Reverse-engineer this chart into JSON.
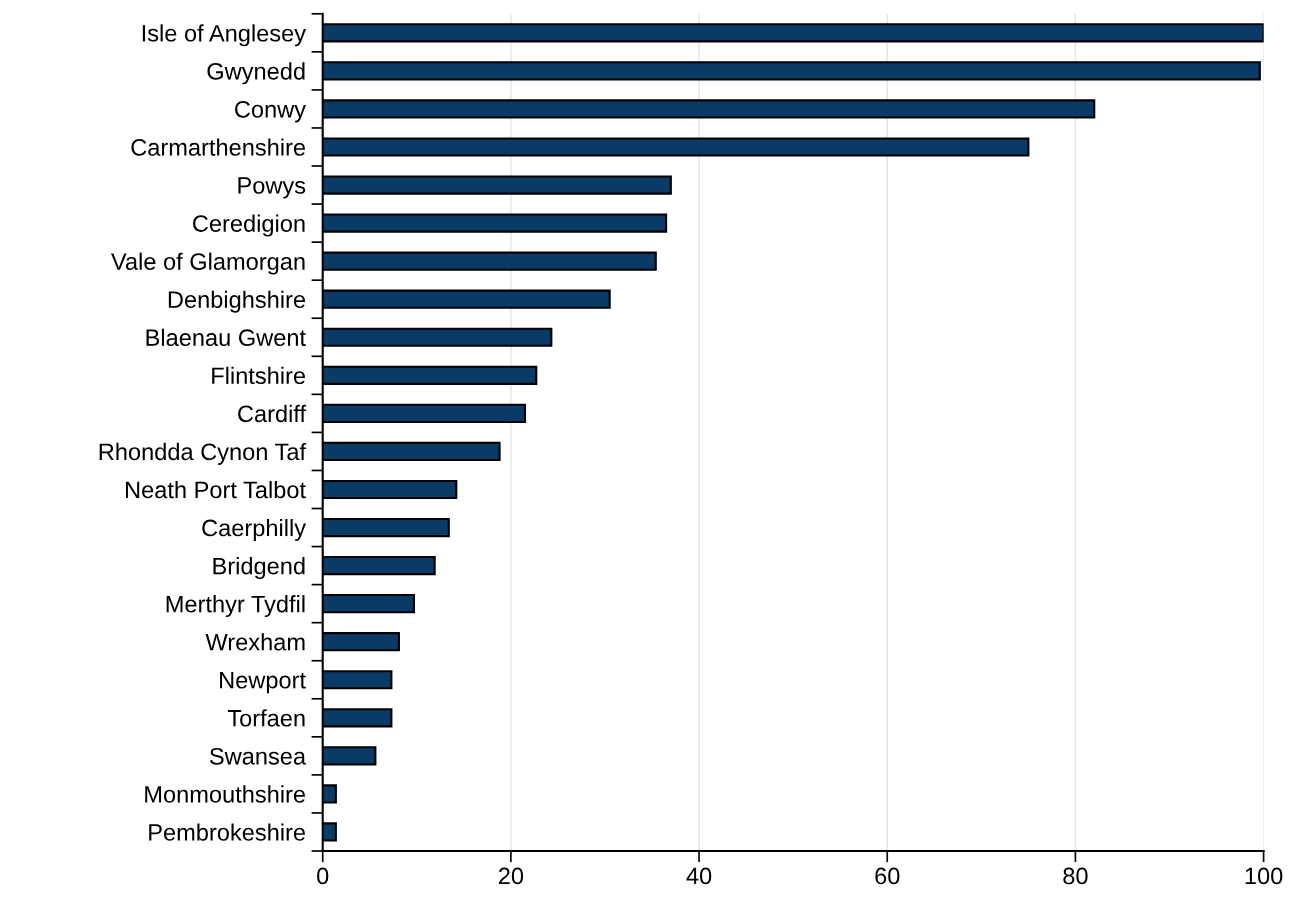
{
  "chart_data": {
    "type": "bar",
    "orientation": "horizontal",
    "categories": [
      "Isle of Anglesey",
      "Gwynedd",
      "Conwy",
      "Carmarthenshire",
      "Powys",
      "Ceredigion",
      "Vale of Glamorgan",
      "Denbighshire",
      "Blaenau Gwent",
      "Flintshire",
      "Cardiff",
      "Rhondda Cynon Taf",
      "Neath Port Talbot",
      "Caerphilly",
      "Bridgend",
      "Merthyr Tydfil",
      "Wrexham",
      "Newport",
      "Torfaen",
      "Swansea",
      "Monmouthshire",
      "Pembrokeshire"
    ],
    "values": [
      100,
      99.6,
      82,
      75,
      37,
      36.5,
      35.4,
      30.5,
      24.3,
      22.7,
      21.5,
      18.8,
      14.2,
      13.4,
      11.9,
      9.7,
      8.1,
      7.3,
      7.3,
      5.6,
      1.4,
      1.4
    ],
    "color": "#0a3a66",
    "xlim": [
      0,
      100
    ],
    "xticks": [
      0,
      20,
      40,
      60,
      80,
      100
    ],
    "grid": "x",
    "legend": false
  }
}
